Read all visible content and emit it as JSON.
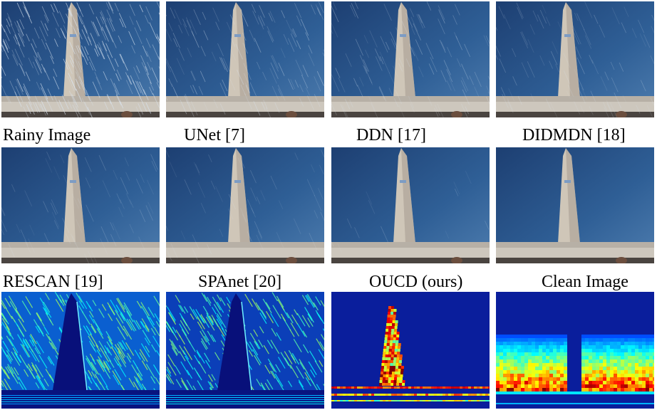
{
  "figure": {
    "captions": [
      "Rainy Image",
      "UNet [7]",
      "DDN [17]",
      "DIDMDN [18]",
      "RESCAN [19]",
      "SPAnet [20]",
      "OUCD (ours)",
      "Clean Image"
    ],
    "panels": [
      {
        "name": "rainy-image-panel",
        "kind": "photo",
        "rain": 1.0
      },
      {
        "name": "unet-result-panel",
        "kind": "photo",
        "rain": 0.55
      },
      {
        "name": "ddn-result-panel",
        "kind": "photo",
        "rain": 0.45
      },
      {
        "name": "didmdn-result-panel",
        "kind": "photo",
        "rain": 0.35
      },
      {
        "name": "rescan-result-panel",
        "kind": "photo",
        "rain": 0.25
      },
      {
        "name": "spanet-result-panel",
        "kind": "photo",
        "rain": 0.2
      },
      {
        "name": "oucd-result-panel",
        "kind": "photo",
        "rain": 0.05
      },
      {
        "name": "clean-image-panel",
        "kind": "photo",
        "rain": 0.0
      },
      {
        "name": "rescan-heatmap-panel",
        "kind": "heatmap-rain"
      },
      {
        "name": "spanet-heatmap-panel",
        "kind": "heatmap-rain2"
      },
      {
        "name": "oucd-heatmap-panel",
        "kind": "heatmap-obelisk"
      },
      {
        "name": "clean-heatmap-panel",
        "kind": "heatmap-band"
      }
    ]
  }
}
